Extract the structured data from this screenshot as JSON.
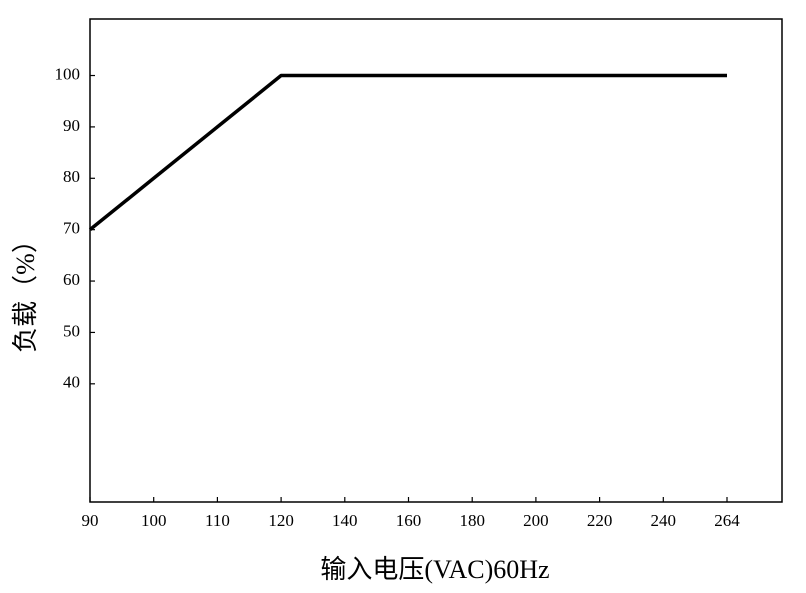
{
  "chart_data": {
    "type": "line",
    "x_label": "输入电压(VAC)60Hz",
    "y_label": "负载（%）",
    "categories": [
      "90",
      "100",
      "110",
      "120",
      "140",
      "160",
      "180",
      "200",
      "220",
      "240",
      "264"
    ],
    "values": [
      70,
      80,
      90,
      100,
      100,
      100,
      100,
      100,
      100,
      100,
      100
    ],
    "color": "#000000",
    "ylim": [
      17,
      111
    ],
    "yticks": [
      40,
      50,
      60,
      70,
      80,
      90,
      100
    ]
  }
}
